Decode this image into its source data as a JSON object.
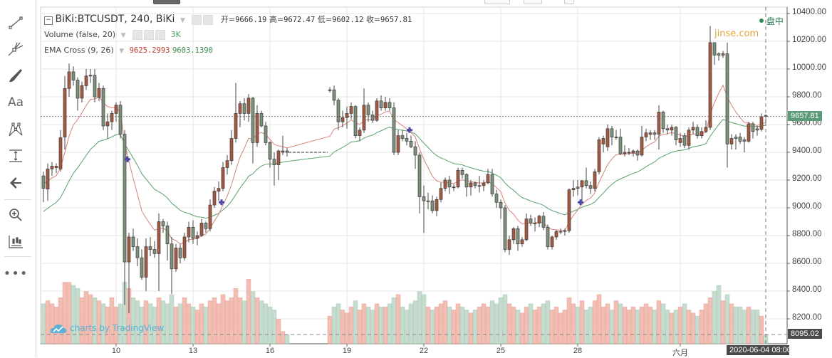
{
  "legend": {
    "symbol": "BiKi:BTCUSDT, 240, BiKi",
    "ohlc": [
      {
        "label": "开=",
        "value": "9666.19"
      },
      {
        "label": "高=",
        "value": "9672.47"
      },
      {
        "label": "低=",
        "value": "9602.12"
      },
      {
        "label": "收=",
        "value": "9657.81"
      }
    ],
    "volume_label": "Volume (false, 20)",
    "volume_value": "3K",
    "ema_label": "EMA Cross (9, 26)",
    "ema_fast_value": "9625.2993",
    "ema_slow_value": "9603.1390"
  },
  "status": {
    "label": "盘中",
    "dot_color": "#2e8b57"
  },
  "watermark": "jinse.com",
  "branding": "charts by TradingView",
  "toolbar": [
    "trend-line-icon",
    "pitchfork-icon",
    "brush-icon",
    "text-icon",
    "pattern-icon",
    "measure-icon",
    "arrow-left-icon",
    "zoom-in-icon",
    "bars-pattern-icon",
    "more-icon"
  ],
  "toolbar_text": {
    "text_tool": "Aa"
  },
  "price_box": "9657.81",
  "volume_box": "8095.02",
  "crosshair_date": "2020-06-04 08:00",
  "colors": {
    "up": "#a9573f",
    "down": "#7e917a",
    "vol_up": "#f0b3a8",
    "vol_down": "#bcd7c6",
    "ema_fast": "#d9827a",
    "ema_slow": "#5aa06a",
    "cross_marker": "#4b46a8",
    "last_price": "#5b9b77"
  },
  "chart_data": {
    "type": "candlestick",
    "ylim": [
      8000,
      10450
    ],
    "y_ticks": [
      "10400.00",
      "10200.00",
      "10000.00",
      "9800.00",
      "9600.00",
      "9400.00",
      "9200.00",
      "9000.00",
      "8800.00",
      "8600.00",
      "8400.00",
      "8200.00"
    ],
    "x_ticks": [
      {
        "label": "10",
        "index": 17
      },
      {
        "label": "13",
        "index": 35
      },
      {
        "label": "16",
        "index": 53
      },
      {
        "label": "19",
        "index": 71
      },
      {
        "label": "22",
        "index": 89
      },
      {
        "label": "25",
        "index": 107
      },
      {
        "label": "28",
        "index": 125
      },
      {
        "label": "六月",
        "index": 149
      }
    ],
    "grid": true,
    "ema_periods": [
      9,
      26
    ],
    "cross_markers": [
      {
        "index": 20,
        "price": 9350
      },
      {
        "index": 42,
        "price": 9040
      },
      {
        "index": 86,
        "price": 9560
      },
      {
        "index": 126,
        "price": 9040
      }
    ],
    "ohlc": [
      [
        9230,
        9260,
        9040,
        9140
      ],
      [
        9135,
        9320,
        9050,
        9280
      ],
      [
        9280,
        9330,
        9230,
        9300
      ],
      [
        9290,
        9320,
        9250,
        9300
      ],
      [
        9280,
        9560,
        9260,
        9505
      ],
      [
        9510,
        9950,
        9420,
        9860
      ],
      [
        9860,
        10040,
        9800,
        9980
      ],
      [
        9980,
        10020,
        9880,
        9920
      ],
      [
        9920,
        9940,
        9700,
        9790
      ],
      [
        9790,
        9910,
        9760,
        9880
      ],
      [
        9880,
        10000,
        9850,
        9950
      ],
      [
        9950,
        10000,
        9900,
        9955
      ],
      [
        9955,
        10000,
        9760,
        9800
      ],
      [
        9795,
        9900,
        9770,
        9860
      ],
      [
        9860,
        9880,
        9560,
        9590
      ],
      [
        9590,
        9680,
        9500,
        9620
      ],
      [
        9620,
        9700,
        9560,
        9680
      ],
      [
        9680,
        9760,
        9620,
        9740
      ],
      [
        9740,
        9770,
        9500,
        9530
      ],
      [
        9530,
        9560,
        8300,
        8610
      ],
      [
        8610,
        8820,
        8240,
        8790
      ],
      [
        8790,
        8850,
        8690,
        8720
      ],
      [
        8720,
        8780,
        8580,
        8640
      ],
      [
        8640,
        8700,
        8480,
        8500
      ],
      [
        8500,
        8780,
        8400,
        8720
      ],
      [
        8720,
        8790,
        8650,
        8700
      ],
      [
        8700,
        8760,
        8640,
        8670
      ],
      [
        8670,
        8960,
        8400,
        8900
      ],
      [
        8900,
        8920,
        8820,
        8870
      ],
      [
        8870,
        8900,
        8620,
        8740
      ],
      [
        8740,
        8790,
        8380,
        8560
      ],
      [
        8560,
        8740,
        8540,
        8710
      ],
      [
        8710,
        8740,
        8600,
        8640
      ],
      [
        8640,
        8820,
        8620,
        8790
      ],
      [
        8790,
        8900,
        8750,
        8860
      ],
      [
        8860,
        8910,
        8740,
        8780
      ],
      [
        8780,
        8830,
        8730,
        8800
      ],
      [
        8800,
        8920,
        8790,
        8890
      ],
      [
        8890,
        8900,
        8820,
        8850
      ],
      [
        8850,
        9060,
        8830,
        9020
      ],
      [
        9020,
        9150,
        9000,
        9120
      ],
      [
        9120,
        9190,
        9050,
        9140
      ],
      [
        9140,
        9330,
        9120,
        9290
      ],
      [
        9290,
        9380,
        9240,
        9340
      ],
      [
        9340,
        9560,
        9310,
        9500
      ],
      [
        9500,
        9900,
        9470,
        9680
      ],
      [
        9680,
        9770,
        9580,
        9750
      ],
      [
        9750,
        9790,
        9630,
        9680
      ],
      [
        9680,
        9820,
        9620,
        9790
      ],
      [
        9790,
        9800,
        9320,
        9470
      ],
      [
        9470,
        9740,
        9440,
        9680
      ],
      [
        9680,
        9700,
        9580,
        9590
      ],
      [
        9590,
        9620,
        9450,
        9470
      ],
      [
        9470,
        9480,
        9290,
        9350
      ],
      [
        9350,
        9400,
        9160,
        9310
      ],
      [
        9310,
        9420,
        9200,
        9410
      ],
      [
        9400,
        9520,
        9380,
        9410
      ],
      [
        9410,
        9430,
        9370,
        9400
      ],
      null,
      null,
      null,
      null,
      null,
      null,
      null,
      null,
      null,
      [
        9850,
        9870,
        9830,
        9850
      ],
      [
        9850,
        9880,
        9740,
        9775
      ],
      [
        9775,
        9790,
        9560,
        9620
      ],
      [
        9620,
        9700,
        9580,
        9650
      ],
      [
        9650,
        9730,
        9570,
        9680
      ],
      [
        9680,
        9760,
        9640,
        9730
      ],
      [
        9730,
        9740,
        9500,
        9520
      ],
      [
        9520,
        9580,
        9480,
        9560
      ],
      [
        9560,
        9860,
        9540,
        9740
      ],
      [
        9740,
        9760,
        9620,
        9670
      ],
      [
        9670,
        9700,
        9610,
        9630
      ],
      [
        9630,
        9790,
        9620,
        9770
      ],
      [
        9770,
        9810,
        9700,
        9720
      ],
      [
        9720,
        9800,
        9700,
        9760
      ],
      [
        9760,
        9790,
        9700,
        9720
      ],
      [
        9720,
        9760,
        9380,
        9400
      ],
      [
        9400,
        9560,
        9380,
        9520
      ],
      [
        9520,
        9560,
        9480,
        9500
      ],
      [
        9500,
        9540,
        9450,
        9480
      ],
      [
        9480,
        9520,
        9430,
        9440
      ],
      [
        9440,
        9480,
        9280,
        9380
      ],
      [
        9380,
        9400,
        8960,
        9080
      ],
      [
        9080,
        9160,
        8820,
        9050
      ],
      [
        9050,
        9110,
        8990,
        9050
      ],
      [
        9050,
        9090,
        8960,
        8980
      ],
      [
        8980,
        9080,
        8940,
        9060
      ],
      [
        9060,
        9180,
        9040,
        9140
      ],
      [
        9140,
        9220,
        9120,
        9200
      ],
      [
        9200,
        9230,
        9100,
        9150
      ],
      [
        9150,
        9170,
        9120,
        9150
      ],
      [
        9150,
        9290,
        9140,
        9270
      ],
      [
        9270,
        9290,
        9210,
        9240
      ],
      [
        9240,
        9250,
        9080,
        9150
      ],
      [
        9150,
        9200,
        9090,
        9180
      ],
      [
        9180,
        9190,
        9140,
        9160
      ],
      [
        9160,
        9230,
        9110,
        9160
      ],
      [
        9160,
        9200,
        9120,
        9180
      ],
      [
        9180,
        9280,
        9170,
        9240
      ],
      [
        9240,
        9280,
        9080,
        9100
      ],
      [
        9100,
        9130,
        9000,
        9040
      ],
      [
        9040,
        9060,
        8920,
        9000
      ],
      [
        9000,
        9020,
        8680,
        8700
      ],
      [
        8700,
        8800,
        8660,
        8770
      ],
      [
        8770,
        8860,
        8740,
        8850
      ],
      [
        8850,
        8870,
        8690,
        8740
      ],
      [
        8740,
        8790,
        8720,
        8770
      ],
      [
        8770,
        8960,
        8760,
        8920
      ],
      [
        8920,
        8950,
        8870,
        8890
      ],
      [
        8890,
        8930,
        8830,
        8890
      ],
      [
        8890,
        8950,
        8860,
        8940
      ],
      [
        8940,
        8970,
        8840,
        8860
      ],
      [
        8860,
        8880,
        8700,
        8720
      ],
      [
        8720,
        8800,
        8700,
        8790
      ],
      [
        8790,
        8840,
        8770,
        8830
      ],
      [
        8830,
        8850,
        8810,
        8830
      ],
      [
        8830,
        8850,
        8800,
        8835
      ],
      [
        8835,
        9140,
        8820,
        9130
      ],
      [
        9130,
        9200,
        9080,
        9140
      ],
      [
        9150,
        9200,
        9090,
        9140
      ],
      [
        9150,
        9200,
        9050,
        9195
      ],
      [
        9195,
        9290,
        9140,
        9160
      ],
      [
        9160,
        9190,
        9100,
        9140
      ],
      [
        9140,
        9280,
        9120,
        9260
      ],
      [
        9260,
        9510,
        9240,
        9490
      ],
      [
        9460,
        9520,
        9400,
        9500
      ],
      [
        9440,
        9600,
        9410,
        9570
      ],
      [
        9570,
        9590,
        9450,
        9510
      ],
      [
        9510,
        9560,
        9490,
        9510
      ],
      [
        9510,
        9570,
        9380,
        9390
      ],
      [
        9390,
        9450,
        9370,
        9400
      ],
      [
        9400,
        9430,
        9380,
        9400
      ],
      [
        9395,
        9420,
        9370,
        9410
      ],
      [
        9410,
        9420,
        9340,
        9380
      ],
      [
        9380,
        9590,
        9370,
        9510
      ],
      [
        9510,
        9570,
        9480,
        9540
      ],
      [
        9530,
        9560,
        9490,
        9540
      ],
      [
        9540,
        9560,
        9490,
        9530
      ],
      [
        9530,
        9740,
        9420,
        9690
      ],
      [
        9690,
        9700,
        9540,
        9570
      ],
      [
        9570,
        9600,
        9530,
        9560
      ],
      [
        9560,
        9600,
        9520,
        9580
      ],
      [
        9580,
        9590,
        9450,
        9490
      ],
      [
        9470,
        9540,
        9440,
        9500
      ],
      [
        9520,
        9540,
        9430,
        9450
      ],
      [
        9450,
        9580,
        9420,
        9560
      ],
      [
        9560,
        9620,
        9530,
        9580
      ],
      [
        9580,
        9600,
        9500,
        9520
      ],
      [
        9520,
        9580,
        9500,
        9550
      ],
      [
        9550,
        9630,
        9540,
        9580
      ],
      [
        9580,
        10310,
        9560,
        10190
      ],
      [
        10190,
        10190,
        10030,
        10100
      ],
      [
        10110,
        10120,
        10060,
        10100
      ],
      [
        10100,
        10130,
        10080,
        10110
      ],
      [
        10110,
        10190,
        9290,
        9460
      ],
      [
        9460,
        9530,
        9420,
        9500
      ],
      [
        9510,
        9530,
        9420,
        9500
      ],
      [
        9510,
        9540,
        9460,
        9480
      ],
      [
        9490,
        9510,
        9400,
        9480
      ],
      [
        9480,
        9620,
        9470,
        9605
      ],
      [
        9605,
        9620,
        9500,
        9550
      ],
      [
        9570,
        9590,
        9520,
        9560
      ],
      [
        9565,
        9680,
        9550,
        9657
      ],
      [
        9666.19,
        9672.47,
        9602.12,
        9657.81
      ]
    ],
    "volume_unit": "K",
    "volume": [
      13,
      14,
      13,
      12,
      15,
      20,
      20,
      19,
      18,
      15,
      17,
      16,
      15,
      14,
      13,
      12,
      15,
      12,
      13,
      20,
      18,
      15,
      14,
      12,
      14,
      13,
      12,
      15,
      14,
      13,
      16,
      12,
      13,
      15,
      13,
      12,
      11,
      13,
      12,
      14,
      15,
      13,
      16,
      14,
      15,
      18,
      15,
      14,
      21,
      17,
      15,
      14,
      13,
      12,
      11,
      8,
      4,
      3,
      null,
      null,
      null,
      null,
      null,
      null,
      null,
      null,
      null,
      9,
      12,
      13,
      11,
      10,
      12,
      14,
      11,
      13,
      12,
      11,
      13,
      12,
      12,
      13,
      15,
      16,
      12,
      11,
      13,
      14,
      17,
      16,
      12,
      11,
      12,
      13,
      14,
      12,
      11,
      13,
      12,
      11,
      10,
      11,
      12,
      13,
      12,
      14,
      13,
      15,
      16,
      13,
      12,
      11,
      10,
      12,
      13,
      11,
      12,
      13,
      14,
      11,
      12,
      10,
      11,
      15,
      13,
      12,
      14,
      11,
      12,
      14,
      16,
      12,
      13,
      11,
      14,
      13,
      12,
      11,
      12,
      11,
      12,
      13,
      12,
      11,
      14,
      13,
      11,
      10,
      11,
      12,
      13,
      11,
      10,
      9,
      11,
      13,
      15,
      17,
      19,
      14,
      16,
      13,
      12,
      12,
      11,
      12,
      11,
      11,
      9,
      3
    ]
  }
}
